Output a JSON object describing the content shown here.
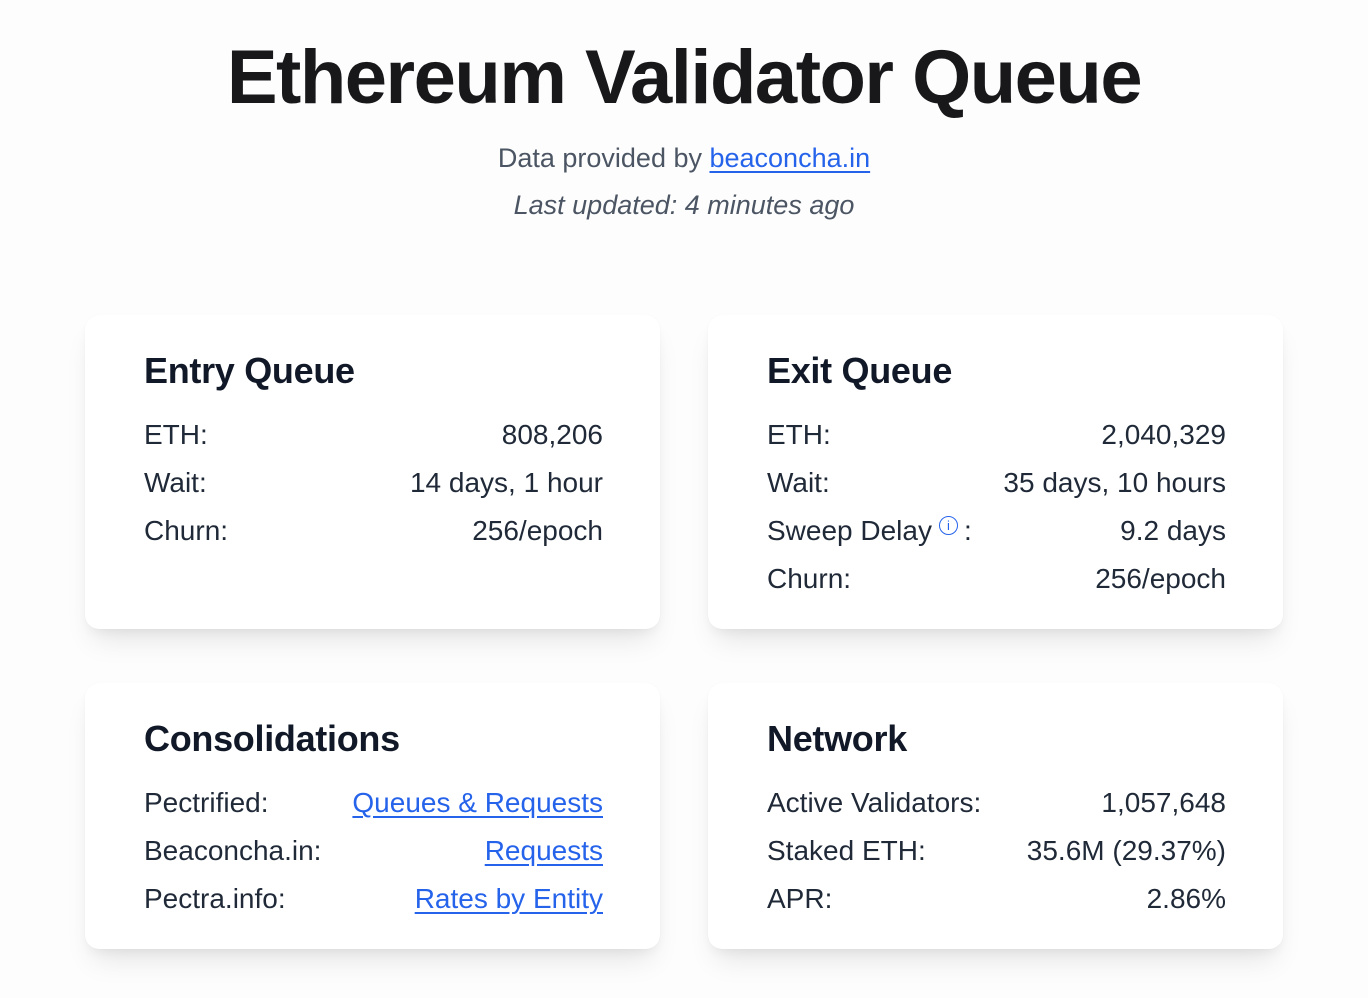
{
  "header": {
    "title": "Ethereum Validator Queue",
    "subtitle_prefix": "Data provided by ",
    "subtitle_link": "beaconcha.in",
    "last_updated": "Last updated: 4 minutes ago"
  },
  "icons": {
    "info_glyph": "i"
  },
  "colors": {
    "link_blue": "#2563eb",
    "title_dark": "#18181b",
    "body_text": "#1f2937",
    "muted_gray": "#4b5563",
    "card_bg": "#ffffff",
    "page_bg": "#fdfdfd"
  },
  "cards": {
    "entry_queue": {
      "title": "Entry Queue",
      "rows": [
        {
          "label": "ETH:",
          "value": "808,206"
        },
        {
          "label": "Wait:",
          "value": "14 days, 1 hour"
        },
        {
          "label": "Churn:",
          "value": "256/epoch"
        }
      ]
    },
    "exit_queue": {
      "title": "Exit Queue",
      "rows": [
        {
          "label": "ETH:",
          "value": "2,040,329"
        },
        {
          "label": "Wait:",
          "value": "35 days, 10 hours"
        },
        {
          "label": "Sweep Delay",
          "label_suffix": ":",
          "has_info_icon": true,
          "value": "9.2 days"
        },
        {
          "label": "Churn:",
          "value": "256/epoch"
        }
      ]
    },
    "consolidations": {
      "title": "Consolidations",
      "rows": [
        {
          "label": "Pectrified:",
          "link": "Queues & Requests"
        },
        {
          "label": "Beaconcha.in:",
          "link": "Requests"
        },
        {
          "label": "Pectra.info:",
          "link": "Rates by Entity"
        }
      ]
    },
    "network": {
      "title": "Network",
      "rows": [
        {
          "label": "Active Validators:",
          "value": "1,057,648"
        },
        {
          "label": "Staked ETH:",
          "value": "35.6M (29.37%)"
        },
        {
          "label": "APR:",
          "value": "2.86%"
        }
      ]
    }
  }
}
